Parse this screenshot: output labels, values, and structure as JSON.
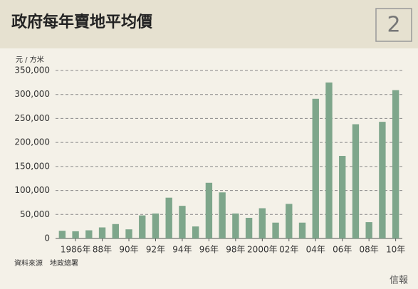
{
  "chart_data": {
    "type": "bar",
    "title": "政府每年賣地平均價",
    "badge": "2",
    "y_axis_label": "元 / 方米",
    "source": "資料來源　地政總署",
    "watermark": "信報",
    "categories": [
      null,
      "1986年",
      null,
      "88年",
      null,
      "90年",
      null,
      "92年",
      null,
      "94年",
      null,
      "96年",
      null,
      "98年",
      null,
      "2000年",
      null,
      "02年",
      null,
      "04年",
      null,
      "06年",
      null,
      "08年",
      null,
      "10年"
    ],
    "values": [
      16000,
      15000,
      17000,
      23000,
      30000,
      19000,
      48000,
      52000,
      85000,
      68000,
      25000,
      116000,
      96000,
      52000,
      43000,
      63000,
      33000,
      72000,
      33000,
      291000,
      325000,
      172000,
      238000,
      34000,
      243000,
      309000
    ],
    "color": "#7ea68b",
    "ylim": [
      0,
      350000
    ],
    "yticks": [
      0,
      {
        "value": 50000,
        "label": "50,000"
      },
      {
        "value": 100000,
        "label": "100,000"
      },
      {
        "value": 150000,
        "label": "150,000"
      },
      {
        "value": 200000,
        "label": "200,000"
      },
      {
        "value": 250000,
        "label": "250,000"
      },
      {
        "value": 300000,
        "label": "300,000"
      },
      {
        "value": 350000,
        "label": "350,000"
      }
    ],
    "grid": true
  }
}
